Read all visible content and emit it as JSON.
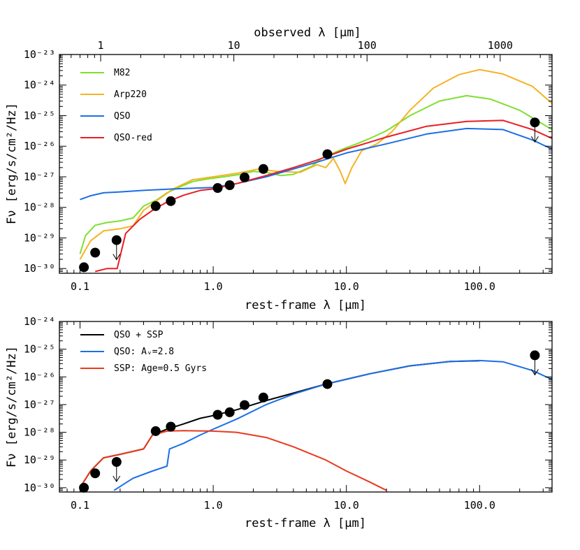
{
  "chart_data": [
    {
      "type": "line",
      "panel": "top",
      "xlabel": "rest-frame λ [μm]",
      "ylabel": "Fν [erg/s/cm²/Hz]",
      "top_xlabel": "observed λ [μm]",
      "xscale": "log",
      "yscale": "log",
      "xlim": [
        0.07,
        350
      ],
      "ylim": [
        7e-31,
        1e-23
      ],
      "x_ticks": [
        "0.1",
        "1.0",
        "10.0",
        "100.0"
      ],
      "y_ticks": [
        "10⁻³⁰",
        "10⁻²⁹",
        "10⁻²⁸",
        "10⁻²⁷",
        "10⁻²⁶",
        "10⁻²⁵",
        "10⁻²⁴",
        "10⁻²³"
      ],
      "top_ticks": [
        "1",
        "10",
        "100",
        "1000"
      ],
      "legend_position": "top-left",
      "series": [
        {
          "name": "M82",
          "color": "#7ee02e",
          "points": [
            [
              0.1,
              3e-30
            ],
            [
              0.11,
              1.2e-29
            ],
            [
              0.13,
              2.6e-29
            ],
            [
              0.16,
              3.2e-29
            ],
            [
              0.2,
              3.6e-29
            ],
            [
              0.25,
              4.5e-29
            ],
            [
              0.3,
              1.1e-28
            ],
            [
              0.38,
              1.8e-28
            ],
            [
              0.45,
              3e-28
            ],
            [
              0.55,
              4.5e-28
            ],
            [
              0.7,
              7e-28
            ],
            [
              0.9,
              8.5e-28
            ],
            [
              1.2,
              1e-27
            ],
            [
              1.6,
              1.2e-27
            ],
            [
              2.0,
              1.5e-27
            ],
            [
              2.5,
              1.4e-27
            ],
            [
              3.2,
              1.1e-27
            ],
            [
              4.0,
              1.2e-27
            ],
            [
              5.5,
              2.2e-27
            ],
            [
              6.5,
              4e-27
            ],
            [
              8,
              6e-27
            ],
            [
              10,
              9e-27
            ],
            [
              12,
              1.2e-26
            ],
            [
              15,
              1.8e-26
            ],
            [
              20,
              3.2e-26
            ],
            [
              30,
              1e-25
            ],
            [
              50,
              3e-25
            ],
            [
              80,
              4.5e-25
            ],
            [
              120,
              3.5e-25
            ],
            [
              200,
              1.5e-25
            ],
            [
              350,
              3.5e-26
            ]
          ]
        },
        {
          "name": "Arp220",
          "color": "#f5b324",
          "points": [
            [
              0.1,
              2e-30
            ],
            [
              0.12,
              8e-30
            ],
            [
              0.15,
              1.7e-29
            ],
            [
              0.2,
              2e-29
            ],
            [
              0.25,
              2.5e-29
            ],
            [
              0.3,
              8e-29
            ],
            [
              0.4,
              2e-28
            ],
            [
              0.5,
              4e-28
            ],
            [
              0.7,
              8e-28
            ],
            [
              1.0,
              1e-27
            ],
            [
              1.5,
              1.3e-27
            ],
            [
              2.2,
              1.8e-27
            ],
            [
              3,
              1.5e-27
            ],
            [
              4.5,
              1.4e-27
            ],
            [
              6,
              2.5e-27
            ],
            [
              7,
              2e-27
            ],
            [
              8,
              4e-27
            ],
            [
              9,
              1.5e-27
            ],
            [
              9.8,
              6e-28
            ],
            [
              11,
              2e-27
            ],
            [
              13,
              7e-27
            ],
            [
              17,
              1.2e-26
            ],
            [
              22,
              3e-26
            ],
            [
              30,
              1.5e-25
            ],
            [
              45,
              8e-25
            ],
            [
              70,
              2.2e-24
            ],
            [
              100,
              3.2e-24
            ],
            [
              150,
              2.3e-24
            ],
            [
              250,
              9e-25
            ],
            [
              350,
              2.5e-25
            ]
          ]
        },
        {
          "name": "QSO",
          "color": "#1c6ee6",
          "points": [
            [
              0.1,
              1.8e-28
            ],
            [
              0.12,
              2.4e-28
            ],
            [
              0.15,
              3e-28
            ],
            [
              0.2,
              3.2e-28
            ],
            [
              0.3,
              3.6e-28
            ],
            [
              0.5,
              4e-28
            ],
            [
              1.0,
              4.5e-28
            ],
            [
              1.5,
              6e-28
            ],
            [
              2.5,
              1e-27
            ],
            [
              4,
              1.8e-27
            ],
            [
              6,
              3e-27
            ],
            [
              10,
              6e-27
            ],
            [
              20,
              1.2e-26
            ],
            [
              40,
              2.5e-26
            ],
            [
              80,
              3.8e-26
            ],
            [
              150,
              3.5e-26
            ],
            [
              250,
              1.6e-26
            ],
            [
              350,
              8e-27
            ]
          ]
        },
        {
          "name": "QSO-red",
          "color": "#ea1e22",
          "points": [
            [
              0.13,
              8e-31
            ],
            [
              0.16,
              1e-30
            ],
            [
              0.19,
              1e-30
            ],
            [
              0.22,
              1.4e-29
            ],
            [
              0.28,
              4e-29
            ],
            [
              0.35,
              8e-29
            ],
            [
              0.45,
              1.5e-28
            ],
            [
              0.6,
              2.5e-28
            ],
            [
              0.8,
              3.6e-28
            ],
            [
              1.0,
              4e-28
            ],
            [
              1.5,
              6e-28
            ],
            [
              2.5,
              1.1e-27
            ],
            [
              4,
              2e-27
            ],
            [
              6,
              3.5e-27
            ],
            [
              10,
              8e-27
            ],
            [
              20,
              2e-26
            ],
            [
              40,
              4.5e-26
            ],
            [
              80,
              6.5e-26
            ],
            [
              150,
              7e-26
            ],
            [
              250,
              3.5e-26
            ],
            [
              350,
              1.8e-26
            ]
          ]
        }
      ],
      "photometry": [
        [
          0.107,
          1.1e-30
        ],
        [
          0.13,
          3.3e-30
        ],
        [
          0.188,
          8.5e-30
        ],
        [
          0.37,
          1.1e-28
        ],
        [
          0.48,
          1.6e-28
        ],
        [
          1.08,
          4.3e-28
        ],
        [
          1.33,
          5.3e-28
        ],
        [
          1.72,
          9.6e-28
        ],
        [
          2.38,
          1.8e-27
        ],
        [
          7.2,
          5.5e-27
        ],
        [
          260,
          6e-26
        ]
      ],
      "upper_limits": [
        0.188,
        260
      ]
    },
    {
      "type": "line",
      "panel": "bottom",
      "xlabel": "rest-frame λ [μm]",
      "ylabel": "Fν [erg/s/cm²/Hz]",
      "xscale": "log",
      "yscale": "log",
      "xlim": [
        0.07,
        350
      ],
      "ylim": [
        7e-31,
        1e-24
      ],
      "x_ticks": [
        "0.1",
        "1.0",
        "10.0",
        "100.0"
      ],
      "y_ticks": [
        "10⁻³⁰",
        "10⁻²⁹",
        "10⁻²⁸",
        "10⁻²⁷",
        "10⁻²⁶",
        "10⁻²⁵",
        "10⁻²⁴"
      ],
      "legend_position": "top-left",
      "series": [
        {
          "name": "QSO + SSP",
          "color": "#000000",
          "points": [
            [
              0.1,
              1e-30
            ],
            [
              0.12,
              4e-30
            ],
            [
              0.15,
              1.2e-29
            ],
            [
              0.2,
              1.6e-29
            ],
            [
              0.3,
              2.5e-29
            ],
            [
              0.35,
              8e-29
            ],
            [
              0.45,
              1.3e-28
            ],
            [
              0.6,
              2e-28
            ],
            [
              0.8,
              3.2e-28
            ],
            [
              1.0,
              4e-28
            ],
            [
              1.5,
              6.5e-28
            ],
            [
              2.5,
              1.4e-27
            ],
            [
              4,
              2.6e-27
            ],
            [
              7,
              5.5e-27
            ],
            [
              15,
              1.3e-26
            ],
            [
              30,
              2.5e-26
            ],
            [
              60,
              3.6e-26
            ],
            [
              100,
              3.8e-26
            ]
          ]
        },
        {
          "name": "QSO: Aᵥ=2.8",
          "color": "#1c6ee6",
          "points": [
            [
              0.18,
              8e-31
            ],
            [
              0.25,
              2.2e-30
            ],
            [
              0.35,
              4e-30
            ],
            [
              0.45,
              6e-30
            ],
            [
              0.47,
              2.5e-29
            ],
            [
              0.6,
              4e-29
            ],
            [
              0.8,
              8e-29
            ],
            [
              1.0,
              1.3e-28
            ],
            [
              1.5,
              3e-28
            ],
            [
              2.5,
              1e-27
            ],
            [
              4,
              2.4e-27
            ],
            [
              7,
              5.5e-27
            ],
            [
              15,
              1.3e-26
            ],
            [
              30,
              2.5e-26
            ],
            [
              60,
              3.6e-26
            ],
            [
              100,
              3.9e-26
            ],
            [
              150,
              3.5e-26
            ],
            [
              250,
              1.7e-26
            ],
            [
              350,
              8e-27
            ]
          ]
        },
        {
          "name": "SSP: Age=0.5 Gyrs",
          "color": "#ea3a1e",
          "points": [
            [
              0.1,
              1e-30
            ],
            [
              0.12,
              4e-30
            ],
            [
              0.15,
              1.2e-29
            ],
            [
              0.2,
              1.6e-29
            ],
            [
              0.3,
              2.5e-29
            ],
            [
              0.35,
              8e-29
            ],
            [
              0.45,
              1.1e-28
            ],
            [
              0.6,
              1.15e-28
            ],
            [
              1.0,
              1.1e-28
            ],
            [
              1.5,
              1e-28
            ],
            [
              2.5,
              6.5e-29
            ],
            [
              4,
              3e-29
            ],
            [
              7,
              1e-29
            ],
            [
              10,
              4e-30
            ],
            [
              15,
              1.6e-30
            ],
            [
              20,
              8e-31
            ]
          ]
        }
      ],
      "photometry": [
        [
          0.107,
          1e-30
        ],
        [
          0.13,
          3.3e-30
        ],
        [
          0.188,
          8.5e-30
        ],
        [
          0.37,
          1.1e-28
        ],
        [
          0.48,
          1.6e-28
        ],
        [
          1.08,
          4.3e-28
        ],
        [
          1.33,
          5.3e-28
        ],
        [
          1.72,
          9.6e-28
        ],
        [
          2.38,
          1.8e-27
        ],
        [
          7.2,
          5.5e-27
        ],
        [
          260,
          6e-26
        ]
      ],
      "upper_limits": [
        0.188,
        260
      ]
    }
  ]
}
